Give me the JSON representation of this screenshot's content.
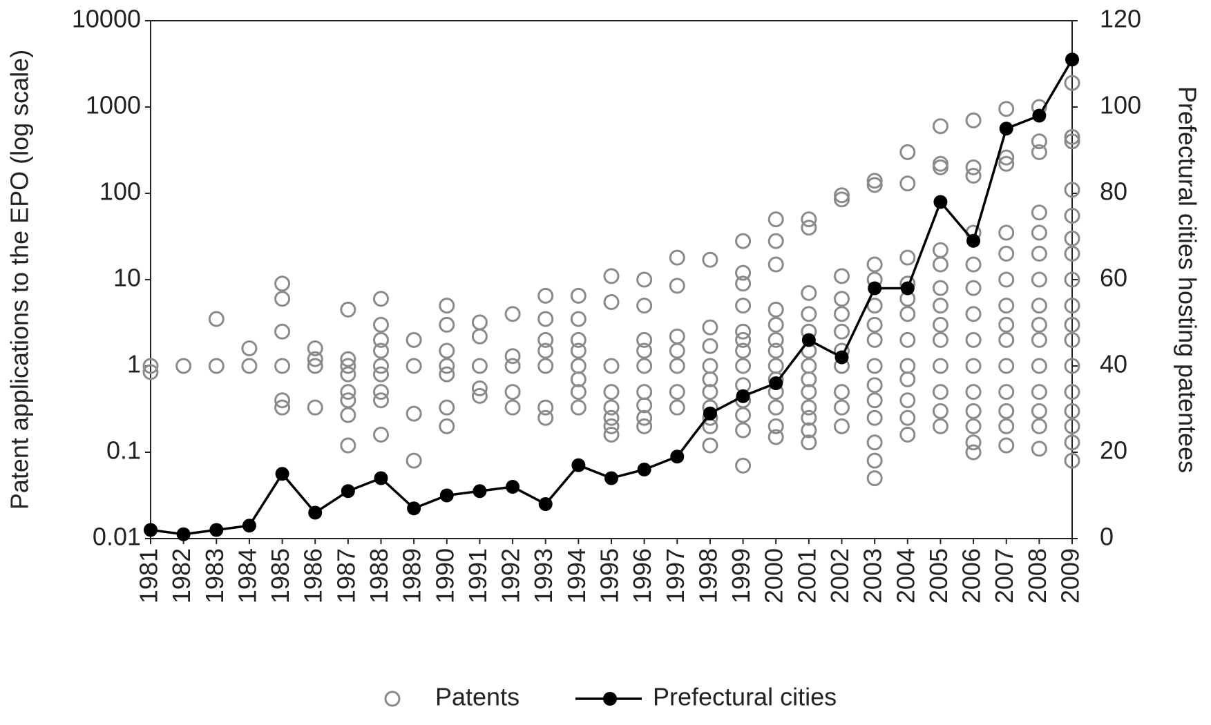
{
  "chart_data": {
    "type": "scatter",
    "ylabel": "Patent applications to the EPO (log scale)",
    "y2label": "Prefectural cities hosting patentees",
    "ylog": true,
    "xlim": [
      1981,
      2009
    ],
    "xticks": [
      1981,
      1982,
      1983,
      1984,
      1985,
      1986,
      1987,
      1988,
      1989,
      1990,
      1991,
      1992,
      1993,
      1994,
      1995,
      1996,
      1997,
      1998,
      1999,
      2000,
      2001,
      2002,
      2003,
      2004,
      2005,
      2006,
      2007,
      2008,
      2009
    ],
    "ylim": [
      0.01,
      10000
    ],
    "yticks": [
      0.01,
      0.1,
      1,
      10,
      100,
      1000,
      10000
    ],
    "y2lim": [
      0,
      120
    ],
    "y2ticks": [
      0,
      20,
      40,
      60,
      80,
      100,
      120
    ],
    "legend": "bottom",
    "series": [
      {
        "name": "Patents",
        "type": "scatter",
        "color": "#8a8a8a",
        "x": [
          1981,
          1981,
          1982,
          1983,
          1983,
          1984,
          1984,
          1985,
          1985,
          1985,
          1985,
          1985,
          1985,
          1986,
          1986,
          1986,
          1986,
          1987,
          1987,
          1987,
          1987,
          1987,
          1987,
          1987,
          1987,
          1988,
          1988,
          1988,
          1988,
          1988,
          1988,
          1988,
          1988,
          1988,
          1989,
          1989,
          1989,
          1989,
          1990,
          1990,
          1990,
          1990,
          1990,
          1990,
          1990,
          1991,
          1991,
          1991,
          1991,
          1991,
          1992,
          1992,
          1992,
          1992,
          1992,
          1993,
          1993,
          1993,
          1993,
          1993,
          1993,
          1993,
          1994,
          1994,
          1994,
          1994,
          1994,
          1994,
          1994,
          1994,
          1995,
          1995,
          1995,
          1995,
          1995,
          1995,
          1995,
          1995,
          1996,
          1996,
          1996,
          1996,
          1996,
          1996,
          1996,
          1996,
          1996,
          1997,
          1997,
          1997,
          1997,
          1997,
          1997,
          1997,
          1998,
          1998,
          1998,
          1998,
          1998,
          1998,
          1998,
          1998,
          1998,
          1998,
          1999,
          1999,
          1999,
          1999,
          1999,
          1999,
          1999,
          1999,
          1999,
          1999,
          1999,
          1999,
          1999,
          2000,
          2000,
          2000,
          2000,
          2000,
          2000,
          2000,
          2000,
          2000,
          2000,
          2000,
          2000,
          2000,
          2001,
          2001,
          2001,
          2001,
          2001,
          2001,
          2001,
          2001,
          2001,
          2001,
          2001,
          2001,
          2001,
          2002,
          2002,
          2002,
          2002,
          2002,
          2002,
          2002,
          2002,
          2002,
          2002,
          2002,
          2003,
          2003,
          2003,
          2003,
          2003,
          2003,
          2003,
          2003,
          2003,
          2003,
          2003,
          2003,
          2003,
          2003,
          2004,
          2004,
          2004,
          2004,
          2004,
          2004,
          2004,
          2004,
          2004,
          2004,
          2004,
          2004,
          2005,
          2005,
          2005,
          2005,
          2005,
          2005,
          2005,
          2005,
          2005,
          2005,
          2005,
          2005,
          2005,
          2006,
          2006,
          2006,
          2006,
          2006,
          2006,
          2006,
          2006,
          2006,
          2006,
          2006,
          2006,
          2006,
          2006,
          2007,
          2007,
          2007,
          2007,
          2007,
          2007,
          2007,
          2007,
          2007,
          2007,
          2007,
          2007,
          2007,
          2007,
          2008,
          2008,
          2008,
          2008,
          2008,
          2008,
          2008,
          2008,
          2008,
          2008,
          2008,
          2008,
          2008,
          2008,
          2008,
          2009,
          2009,
          2009,
          2009,
          2009,
          2009,
          2009,
          2009,
          2009,
          2009,
          2009,
          2009,
          2009,
          2009,
          2009,
          2009,
          2009
        ],
        "values": [
          1,
          0.85,
          1,
          3.5,
          1,
          1.6,
          1,
          9,
          6,
          2.5,
          1,
          0.4,
          0.33,
          1.6,
          1.2,
          1,
          0.33,
          4.5,
          1.2,
          1,
          0.8,
          0.5,
          0.4,
          0.27,
          0.12,
          6,
          3,
          2,
          1.5,
          1,
          0.8,
          0.5,
          0.4,
          0.16,
          2,
          1,
          0.28,
          0.08,
          5,
          3,
          1.5,
          1,
          0.8,
          0.33,
          0.2,
          3.2,
          2.2,
          1,
          0.55,
          0.45,
          4,
          1.3,
          1,
          0.5,
          0.33,
          6.5,
          3.5,
          2,
          1.5,
          1,
          0.33,
          0.25,
          6.5,
          3.5,
          2,
          1.5,
          1,
          0.7,
          0.5,
          0.33,
          11,
          5.5,
          1,
          0.5,
          0.33,
          0.25,
          0.2,
          0.16,
          10,
          5,
          2,
          1.5,
          1,
          0.5,
          0.35,
          0.25,
          0.2,
          18,
          8.5,
          2.2,
          1.5,
          1,
          0.5,
          0.33,
          17,
          2.8,
          1.7,
          1,
          0.7,
          0.5,
          0.33,
          0.25,
          0.2,
          0.12,
          28,
          12,
          9,
          5,
          2.5,
          2,
          1.5,
          1,
          0.6,
          0.4,
          0.27,
          0.18,
          0.07,
          50,
          28,
          15,
          4.5,
          3,
          2,
          1.5,
          1,
          0.7,
          0.5,
          0.33,
          0.2,
          0.15,
          50,
          40,
          7,
          4,
          2.5,
          1.5,
          1,
          0.7,
          0.5,
          0.33,
          0.25,
          0.18,
          0.13,
          95,
          85,
          11,
          6,
          4,
          2.5,
          1.5,
          1,
          0.5,
          0.33,
          0.2,
          140,
          125,
          15,
          10,
          5,
          3,
          2,
          1,
          0.6,
          0.4,
          0.25,
          0.13,
          0.08,
          0.05,
          300,
          130,
          18,
          9,
          6,
          4,
          2,
          1,
          0.7,
          0.4,
          0.25,
          0.16,
          600,
          220,
          200,
          22,
          15,
          8,
          5,
          3,
          2,
          1,
          0.5,
          0.3,
          0.2,
          700,
          200,
          160,
          35,
          15,
          8,
          4,
          2,
          1,
          0.5,
          0.3,
          0.2,
          0.13,
          0.1,
          950,
          260,
          220,
          35,
          20,
          10,
          5,
          3,
          2,
          1,
          0.5,
          0.3,
          0.2,
          0.12,
          1000,
          400,
          300,
          60,
          35,
          20,
          10,
          5,
          3,
          2,
          1,
          0.5,
          0.3,
          0.2,
          0.11,
          1900,
          450,
          400,
          110,
          55,
          30,
          20,
          10,
          5,
          3,
          2,
          1,
          0.5,
          0.3,
          0.2,
          0.13,
          0.08
        ]
      },
      {
        "name": "Prefectural cities",
        "type": "line",
        "axis": "y2",
        "color": "#000000",
        "x": [
          1981,
          1982,
          1983,
          1984,
          1985,
          1986,
          1987,
          1988,
          1989,
          1990,
          1991,
          1992,
          1993,
          1994,
          1995,
          1996,
          1997,
          1998,
          1999,
          2000,
          2001,
          2002,
          2003,
          2004,
          2005,
          2006,
          2007,
          2008,
          2009
        ],
        "values": [
          2,
          1,
          2,
          3,
          15,
          6,
          11,
          14,
          7,
          10,
          11,
          12,
          8,
          17,
          14,
          16,
          19,
          29,
          33,
          36,
          46,
          42,
          58,
          58,
          78,
          69,
          95,
          98,
          111
        ]
      }
    ]
  }
}
